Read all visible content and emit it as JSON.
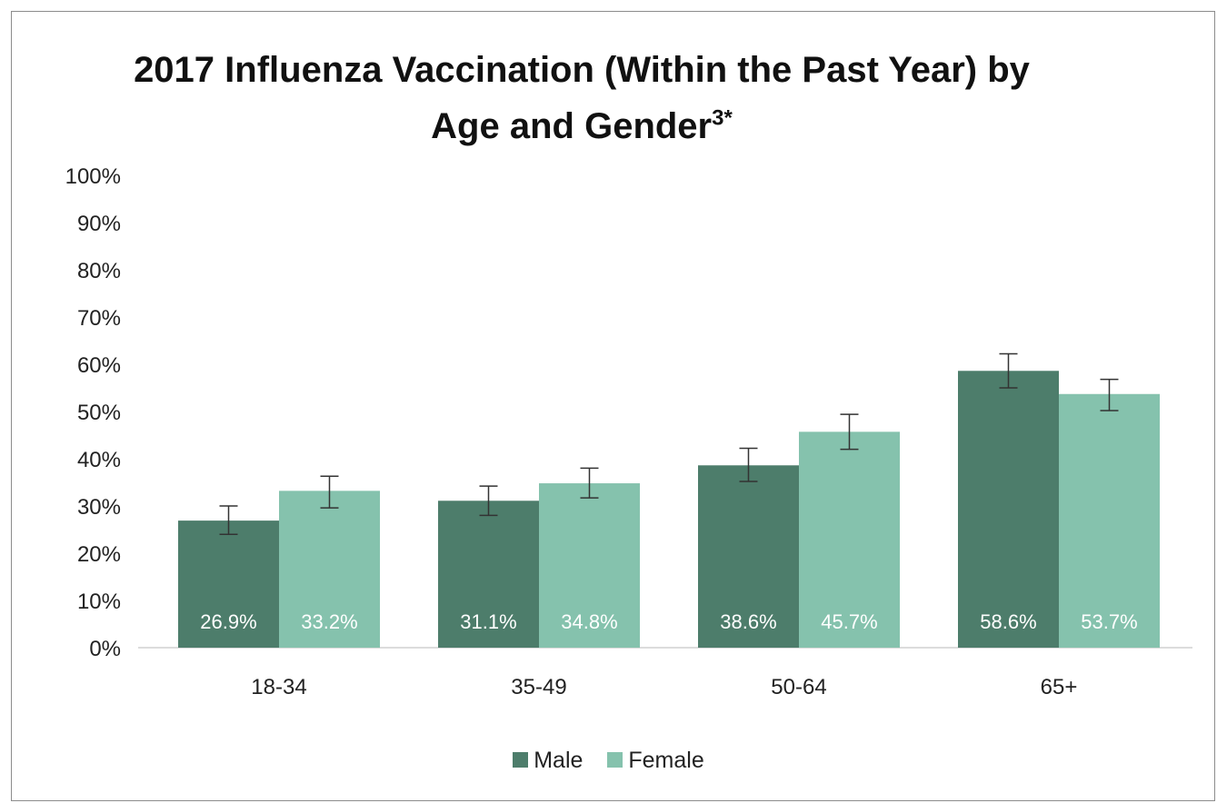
{
  "chart_data": {
    "type": "bar",
    "title": "2017 Influenza Vaccination (Within the Past Year) by Age and Gender",
    "title_superscript": "3*",
    "categories": [
      "18-34",
      "35-49",
      "50-64",
      "65+"
    ],
    "series": [
      {
        "name": "Male",
        "color": "#4d7d6b",
        "values": [
          26.9,
          31.1,
          38.6,
          58.6
        ],
        "labels": [
          "26.9%",
          "31.1%",
          "38.6%",
          "58.6%"
        ],
        "error_low": [
          24.0,
          28.0,
          35.2,
          55.0
        ],
        "error_high": [
          30.0,
          34.2,
          42.2,
          62.2
        ]
      },
      {
        "name": "Female",
        "color": "#85c2ad",
        "values": [
          33.2,
          34.8,
          45.7,
          53.7
        ],
        "labels": [
          "33.2%",
          "34.8%",
          "45.7%",
          "53.7%"
        ],
        "error_low": [
          29.6,
          31.7,
          42.0,
          50.2
        ],
        "error_high": [
          36.3,
          38.0,
          49.4,
          56.8
        ]
      }
    ],
    "ylim": [
      0,
      100
    ],
    "yticks": [
      "0%",
      "10%",
      "20%",
      "30%",
      "40%",
      "50%",
      "60%",
      "70%",
      "80%",
      "90%",
      "100%"
    ],
    "grid": false,
    "legend": "bottom",
    "error_bars": true,
    "value_labels": "inside-bottom"
  }
}
